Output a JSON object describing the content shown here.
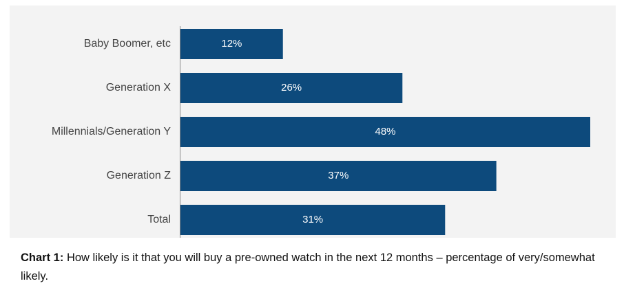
{
  "chart_data": {
    "type": "bar",
    "orientation": "horizontal",
    "categories": [
      "Baby Boomer, etc",
      "Generation X",
      "Millennials/Generation Y",
      "Generation Z",
      "Total"
    ],
    "values": [
      12,
      26,
      48,
      37,
      31
    ],
    "value_labels": [
      "12%",
      "26%",
      "48%",
      "37%",
      "31%"
    ],
    "unit": "%",
    "xlim": [
      0,
      48
    ],
    "grid": false,
    "legend": "none",
    "bar_color": "#0d4a7c",
    "background_color": "#f3f3f3"
  },
  "caption": {
    "prefix": "Chart 1:",
    "text": "How likely is it that you will buy a pre-owned watch in the next 12 months – percentage of very/somewhat likely."
  }
}
